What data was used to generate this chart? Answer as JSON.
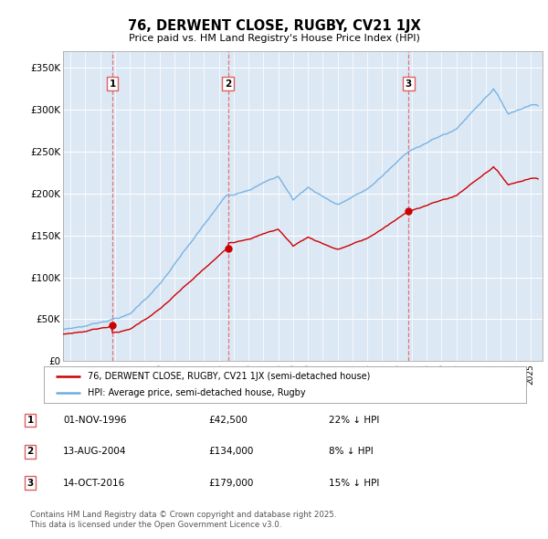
{
  "title": "76, DERWENT CLOSE, RUGBY, CV21 1JX",
  "subtitle": "Price paid vs. HM Land Registry's House Price Index (HPI)",
  "background_color": "#ffffff",
  "plot_bg_color": "#dde8f5",
  "hpi_color": "#6daee0",
  "price_color": "#cc0000",
  "vline_color": "#e06060",
  "sales": [
    {
      "label": "1",
      "date_num": 1996.83,
      "price": 42500
    },
    {
      "label": "2",
      "date_num": 2004.61,
      "price": 134000
    },
    {
      "label": "3",
      "date_num": 2016.78,
      "price": 179000
    }
  ],
  "sale_table": [
    {
      "num": "1",
      "date": "01-NOV-1996",
      "price": "£42,500",
      "note": "22% ↓ HPI"
    },
    {
      "num": "2",
      "date": "13-AUG-2004",
      "price": "£134,000",
      "note": "8% ↓ HPI"
    },
    {
      "num": "3",
      "date": "14-OCT-2016",
      "price": "£179,000",
      "note": "15% ↓ HPI"
    }
  ],
  "legend_line1": "76, DERWENT CLOSE, RUGBY, CV21 1JX (semi-detached house)",
  "legend_line2": "HPI: Average price, semi-detached house, Rugby",
  "footer": "Contains HM Land Registry data © Crown copyright and database right 2025.\nThis data is licensed under the Open Government Licence v3.0.",
  "ylim": [
    0,
    370000
  ],
  "yticks": [
    0,
    50000,
    100000,
    150000,
    200000,
    250000,
    300000,
    350000
  ],
  "ytick_labels": [
    "£0",
    "£50K",
    "£100K",
    "£150K",
    "£200K",
    "£250K",
    "£300K",
    "£350K"
  ],
  "xlim": [
    1993.5,
    2025.8
  ],
  "xticks": [
    1994,
    1995,
    1996,
    1997,
    1998,
    1999,
    2000,
    2001,
    2002,
    2003,
    2004,
    2005,
    2006,
    2007,
    2008,
    2009,
    2010,
    2011,
    2012,
    2013,
    2014,
    2015,
    2016,
    2017,
    2018,
    2019,
    2020,
    2021,
    2022,
    2023,
    2024,
    2025
  ]
}
